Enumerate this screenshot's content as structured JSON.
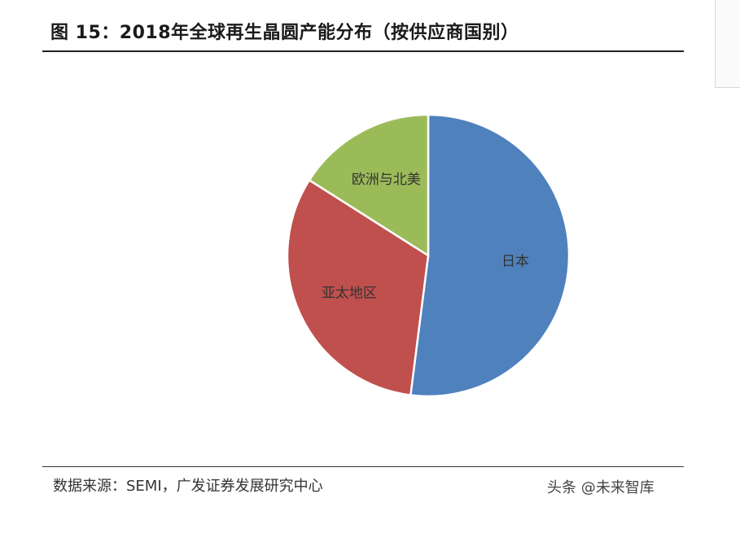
{
  "title": "图 15：2018年全球再生晶圆产能分布（按供应商国别）",
  "source": "数据来源：SEMI，广发证券发展研究中心",
  "watermark": "头条 @未来智库",
  "chart_data": {
    "type": "pie",
    "categories": [
      "日本",
      "亚太地区",
      "欧洲与北美"
    ],
    "values": [
      52,
      32,
      16
    ],
    "colors": [
      "#4f81bd",
      "#c0504d",
      "#9bbb59"
    ],
    "start_angle_deg": 0,
    "direction": "clockwise"
  }
}
